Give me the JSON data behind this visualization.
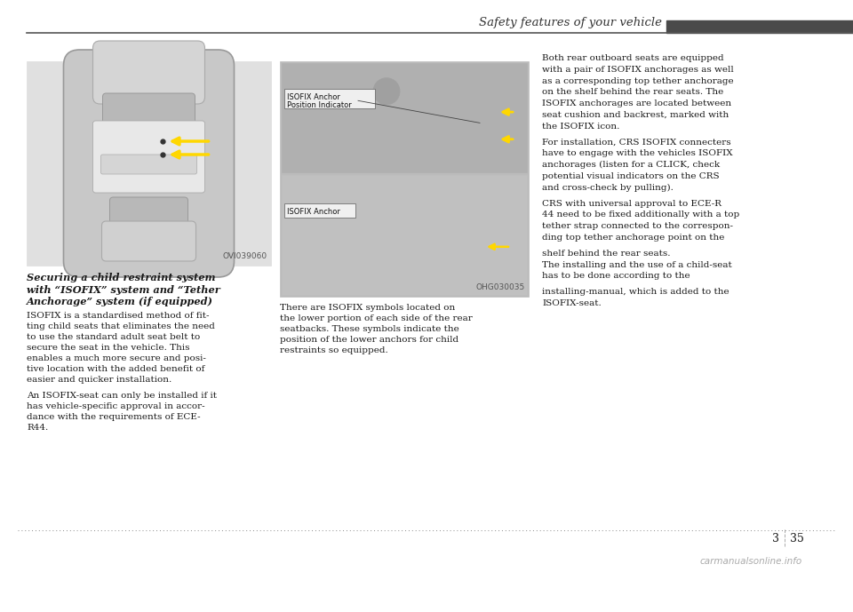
{
  "bg_color": "#ffffff",
  "header_text": "Safety features of your vehicle",
  "header_bar_color": "#4a4a4a",
  "header_text_color": "#333333",
  "header_line_color": "#555555",
  "col1_bold_title": "Securing a child restraint system\nwith “ISOFIX” system and “Tether\nAnchorage” system (if equipped)",
  "col1_body1": "ISOFIX is a standardised method of fit-\nting child seats that eliminates the need\nto use the standard adult seat belt to\nsecure the seat in the vehicle. This\nenables a much more secure and posi-\ntive location with the added benefit of\neasier and quicker installation.",
  "col1_body2": "An ISOFIX-seat can only be installed if it\nhas vehicle-specific approval in accor-\ndance with the requirements of ECE-\nR44.",
  "col2_caption1": "ISOFIX Anchor\nPosition Indicator",
  "col2_caption2": "ISOFIX Anchor",
  "col2_img_code": "OHG030035",
  "col1_img_code": "OVI039060",
  "col3_body": "Both rear outboard seats are equipped\nwith a pair of ISOFIX anchorages as well\nas a corresponding top tether anchorage\non the shelf behind the rear seats. The\nISOFIX anchorages are located between\nseat cushion and backrest, marked with\nthe ISOFIX icon.\nFor installation, CRS ISOFIX connecters\nhave to engage with the vehicles ISOFIX\nanchorages (listen for a CLICK, check\npotential visual indicators on the CRS\nand cross-check by pulling).\nCRS with universal approval to ECE-R\n44 need to be fixed additionally with a top\ntether strap connected to the correspon-\nding top tether anchorage point on the\nshelf behind the rear seats.\nThe installing and the use of a child-seat\nhas to be done according to the\ninstalling-manual, which is added to the\nISOFIX-seat.",
  "text_color": "#1a1a1a",
  "image_bg": "#d8d8d8",
  "image_bg2": "#c8c8c8",
  "footer_dot_color": "#888888",
  "watermark": "carmanualsonline.info",
  "watermark_color": "#aaaaaa",
  "page_num_left": "3",
  "page_num_right": "35"
}
